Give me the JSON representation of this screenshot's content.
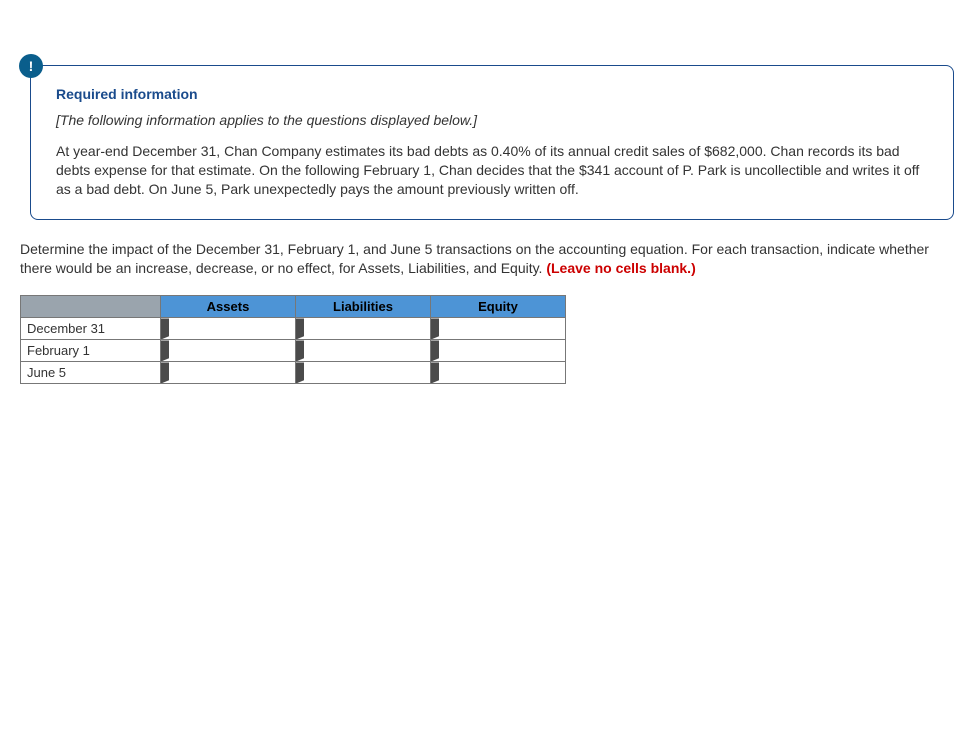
{
  "callout": {
    "icon_glyph": "!",
    "title": "Required information",
    "intro": "[The following information applies to the questions displayed below.]",
    "body": "At year-end December 31, Chan Company estimates its bad debts as 0.40% of its annual credit sales of $682,000. Chan records its bad debts expense for that estimate. On the following February 1, Chan decides that the $341 account of P. Park is uncollectible and writes it off as a bad debt. On June 5, Park unexpectedly pays the amount previously written off."
  },
  "instruction": {
    "text": "Determine the impact of the December 31, February 1, and June 5 transactions on the accounting equation. For each transaction, indicate whether there would be an increase, decrease, or no effect, for Assets, Liabilities, and Equity. ",
    "emphasis": "(Leave no cells blank.)"
  },
  "table": {
    "columns": [
      "Assets",
      "Liabilities",
      "Equity"
    ],
    "rows": [
      {
        "label": "December 31",
        "assets": "",
        "liabilities": "",
        "equity": ""
      },
      {
        "label": "February 1",
        "assets": "",
        "liabilities": "",
        "equity": ""
      },
      {
        "label": "June 5",
        "assets": "",
        "liabilities": "",
        "equity": ""
      }
    ]
  },
  "colors": {
    "callout_border": "#1a4b8c",
    "callout_icon_bg": "#0a5e8c",
    "header_bg": "#4d94d6",
    "corner_bg": "#9aa4ad",
    "border": "#777777",
    "emphasis": "#cc0000",
    "handle": "#4b4b4b"
  }
}
